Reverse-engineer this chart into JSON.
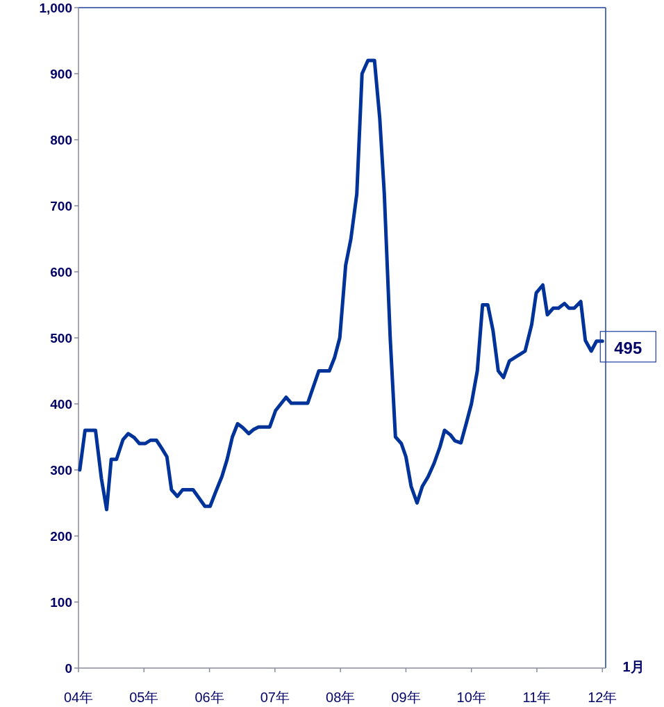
{
  "chart_data": {
    "type": "line",
    "x": [
      4.02,
      4.1,
      4.26,
      4.35,
      4.43,
      4.5,
      4.58,
      4.68,
      4.76,
      4.85,
      4.93,
      5.02,
      5.1,
      5.19,
      5.27,
      5.35,
      5.42,
      5.51,
      5.59,
      5.75,
      5.83,
      5.93,
      6.01,
      6.1,
      6.19,
      6.27,
      6.35,
      6.43,
      6.51,
      6.6,
      6.67,
      6.75,
      6.92,
      7.01,
      7.17,
      7.25,
      7.5,
      7.67,
      7.83,
      7.91,
      7.99,
      8.08,
      8.16,
      8.25,
      8.33,
      8.42,
      8.52,
      8.6,
      8.67,
      8.76,
      8.84,
      8.93,
      9.0,
      9.08,
      9.17,
      9.25,
      9.34,
      9.43,
      9.52,
      9.59,
      9.68,
      9.75,
      9.84,
      9.92,
      10.0,
      10.09,
      10.17,
      10.25,
      10.33,
      10.41,
      10.49,
      10.58,
      10.82,
      10.92,
      10.99,
      11.09,
      11.16,
      11.25,
      11.33,
      11.42,
      11.49,
      11.57,
      11.67,
      11.74,
      11.83,
      11.91,
      12.0
    ],
    "series": [
      {
        "color": "#003399",
        "values": [
          300,
          360,
          360,
          287,
          240,
          316,
          316,
          346,
          355,
          349,
          340,
          340,
          345,
          345,
          333,
          320,
          270,
          260,
          270,
          270,
          259,
          245,
          245,
          268,
          290,
          316,
          350,
          370,
          364,
          355,
          361,
          365,
          365,
          390,
          410,
          401,
          401,
          450,
          450,
          470,
          500,
          610,
          650,
          718,
          900,
          920,
          920,
          833,
          718,
          500,
          350,
          340,
          320,
          275,
          250,
          275,
          290,
          310,
          335,
          360,
          353,
          344,
          341,
          370,
          400,
          450,
          550,
          550,
          511,
          450,
          440,
          465,
          480,
          520,
          568,
          580,
          535,
          545,
          545,
          552,
          545,
          545,
          555,
          496,
          480,
          495,
          495
        ]
      }
    ],
    "xlim": [
      4,
      12.05
    ],
    "xticks": [
      {
        "value": 4,
        "label": "04年"
      },
      {
        "value": 5,
        "label": "05年"
      },
      {
        "value": 6,
        "label": "06年"
      },
      {
        "value": 7,
        "label": "07年"
      },
      {
        "value": 8,
        "label": "08年"
      },
      {
        "value": 9,
        "label": "09年"
      },
      {
        "value": 10,
        "label": "10年"
      },
      {
        "value": 11,
        "label": "11年"
      },
      {
        "value": 12,
        "label": "12年"
      }
    ],
    "ylim": [
      0,
      1000
    ],
    "yticks": [
      0,
      100,
      200,
      300,
      400,
      500,
      600,
      700,
      800,
      900,
      {
        "value": 1000,
        "label": "1,000"
      }
    ],
    "grid": false,
    "marker": "none",
    "line_style": "solid",
    "annotations": [
      {
        "text": "495",
        "x": 12,
        "y": 495
      },
      "1月"
    ]
  }
}
